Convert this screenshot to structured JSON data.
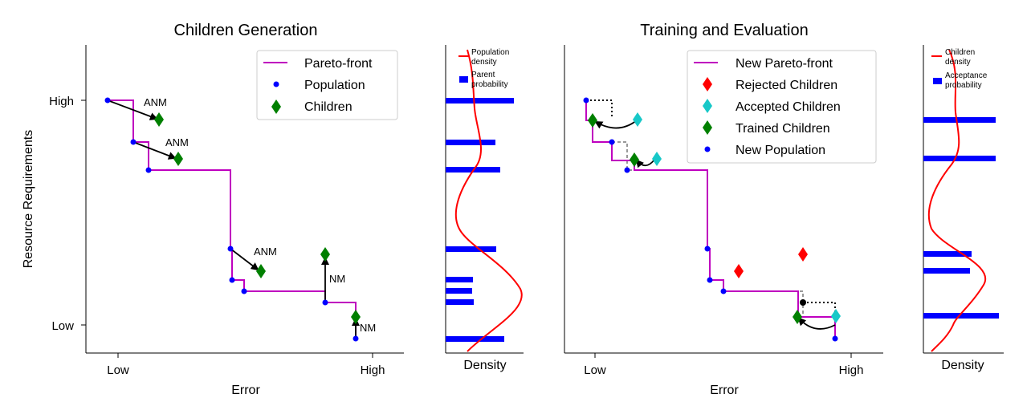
{
  "left_panel": {
    "title": "Children Generation",
    "ylabel": "Resource Requirements",
    "xlabel": "Error",
    "xticks": [
      "Low",
      "High"
    ],
    "yticks": [
      "High",
      "Low"
    ],
    "legend": [
      "Pareto-front",
      "Population",
      "Children"
    ],
    "annotations": [
      "ANM",
      "ANM",
      "ANM",
      "NM",
      "NM"
    ]
  },
  "left_density": {
    "xlabel": "Density",
    "legend": [
      "Population density",
      "Parent probability"
    ]
  },
  "right_panel": {
    "title": "Training and Evaluation",
    "xlabel": "Error",
    "xticks": [
      "Low",
      "High"
    ],
    "legend": [
      "New Pareto-front",
      "Rejected Children",
      "Accepted Children",
      "Trained Children",
      "New Population"
    ]
  },
  "right_density": {
    "xlabel": "Density",
    "legend": [
      "Children density",
      "Acceptance probability"
    ]
  },
  "colors": {
    "pareto": "#bf00bf",
    "population": "#0000ff",
    "children": "#008000",
    "rejected": "#ff0000",
    "accepted": "#17c8c8",
    "density_curve": "#ff0000",
    "bars": "#0000ff"
  }
}
